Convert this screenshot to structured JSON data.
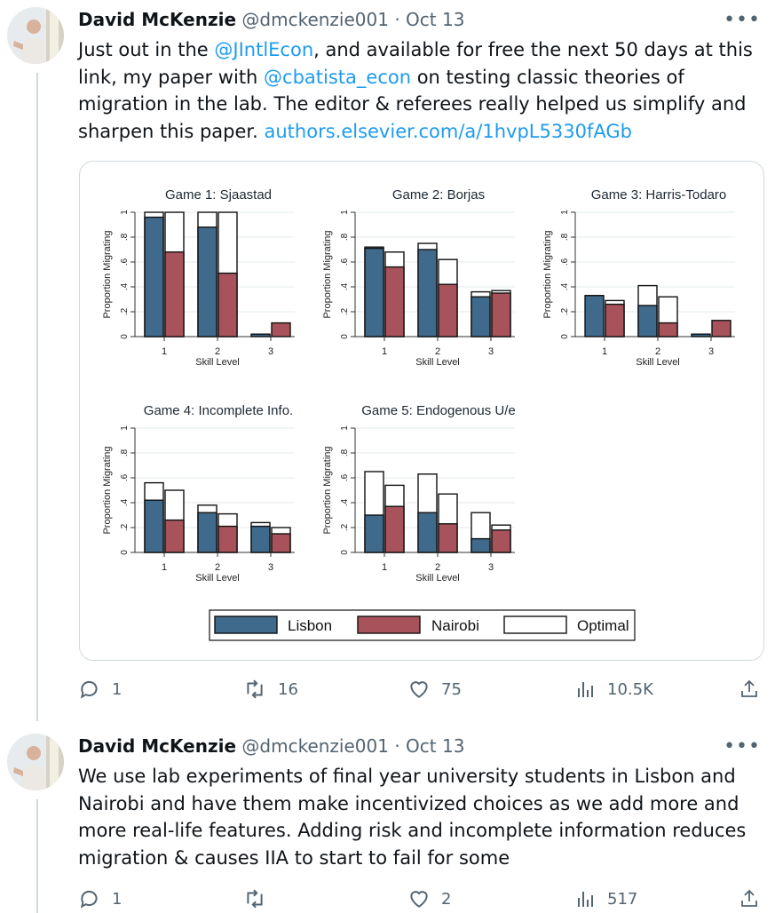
{
  "tweets": [
    {
      "author": "David McKenzie",
      "handle": "@dmckenzie001",
      "sep": "·",
      "date": "Oct 13",
      "more": "•••",
      "text": [
        {
          "t": "Just out in the "
        },
        {
          "t": "@JIntlEcon",
          "link": true
        },
        {
          "t": ", and available for free the next 50 days at this link, my paper with "
        },
        {
          "t": "@cbatista_econ",
          "link": true
        },
        {
          "t": " on testing classic theories of migration in the lab. The editor & referees really helped us simplify and sharpen this paper.  "
        },
        {
          "t": "authors.elsevier.com/a/1hvpL5330fAGb",
          "link": true
        }
      ],
      "replies": "1",
      "reposts": "16",
      "likes": "75",
      "views": "10.5K"
    },
    {
      "author": "David McKenzie",
      "handle": "@dmckenzie001",
      "sep": "·",
      "date": "Oct 13",
      "more": "•••",
      "text": [
        {
          "t": "We use lab experiments of final year university students in Lisbon and Nairobi and have them make incentivized choices as we add more and more real-life features. Adding risk and incomplete information reduces migration & causes IIA to start to fail for some"
        }
      ],
      "replies": "1",
      "reposts": "",
      "likes": "2",
      "views": "517"
    }
  ],
  "icons": [
    "reply-icon",
    "repost-icon",
    "like-icon",
    "views-icon",
    "share-icon",
    "more-icon"
  ],
  "colors": {
    "lisbon": "#3f6a8c",
    "nairobi": "#a8535b",
    "optimal": "#ffffff",
    "link": "#1d9bf0"
  },
  "chart_data": {
    "type": "bar",
    "ylabel": "Proportion Migrating",
    "xlabel": "Skill Level",
    "categories": [
      "1",
      "2",
      "3"
    ],
    "yticks": [
      "0",
      ".2",
      ".4",
      ".6",
      ".8",
      "1"
    ],
    "ylim": [
      0,
      1
    ],
    "grid": true,
    "legend_position": "bottom",
    "legend": [
      "Lisbon",
      "Nairobi",
      "Optimal"
    ],
    "panels": [
      {
        "title": "Game 1: Sjaastad",
        "series": [
          {
            "name": "Lisbon",
            "values": [
              0.96,
              0.88,
              0.02
            ],
            "optimal": [
              1.0,
              1.0,
              0.0
            ]
          },
          {
            "name": "Nairobi",
            "values": [
              0.68,
              0.51,
              0.11
            ],
            "optimal": [
              1.0,
              1.0,
              0.0
            ]
          }
        ]
      },
      {
        "title": "Game 2: Borjas",
        "series": [
          {
            "name": "Lisbon",
            "values": [
              0.71,
              0.7,
              0.32
            ],
            "optimal": [
              0.72,
              0.75,
              0.36
            ]
          },
          {
            "name": "Nairobi",
            "values": [
              0.56,
              0.42,
              0.35
            ],
            "optimal": [
              0.68,
              0.62,
              0.37
            ]
          }
        ]
      },
      {
        "title": "Game 3: Harris-Todaro",
        "series": [
          {
            "name": "Lisbon",
            "values": [
              0.33,
              0.25,
              0.02
            ],
            "optimal": [
              0.33,
              0.41,
              0.0
            ]
          },
          {
            "name": "Nairobi",
            "values": [
              0.26,
              0.11,
              0.13
            ],
            "optimal": [
              0.29,
              0.32,
              0.0
            ]
          }
        ]
      },
      {
        "title": "Game 4: Incomplete Info.",
        "series": [
          {
            "name": "Lisbon",
            "values": [
              0.42,
              0.32,
              0.21
            ],
            "optimal": [
              0.56,
              0.38,
              0.24
            ]
          },
          {
            "name": "Nairobi",
            "values": [
              0.26,
              0.21,
              0.15
            ],
            "optimal": [
              0.5,
              0.31,
              0.2
            ]
          }
        ]
      },
      {
        "title": "Game 5: Endogenous U/e",
        "series": [
          {
            "name": "Lisbon",
            "values": [
              0.3,
              0.32,
              0.11
            ],
            "optimal": [
              0.65,
              0.63,
              0.32
            ]
          },
          {
            "name": "Nairobi",
            "values": [
              0.37,
              0.23,
              0.18
            ],
            "optimal": [
              0.54,
              0.47,
              0.22
            ]
          }
        ]
      }
    ]
  }
}
